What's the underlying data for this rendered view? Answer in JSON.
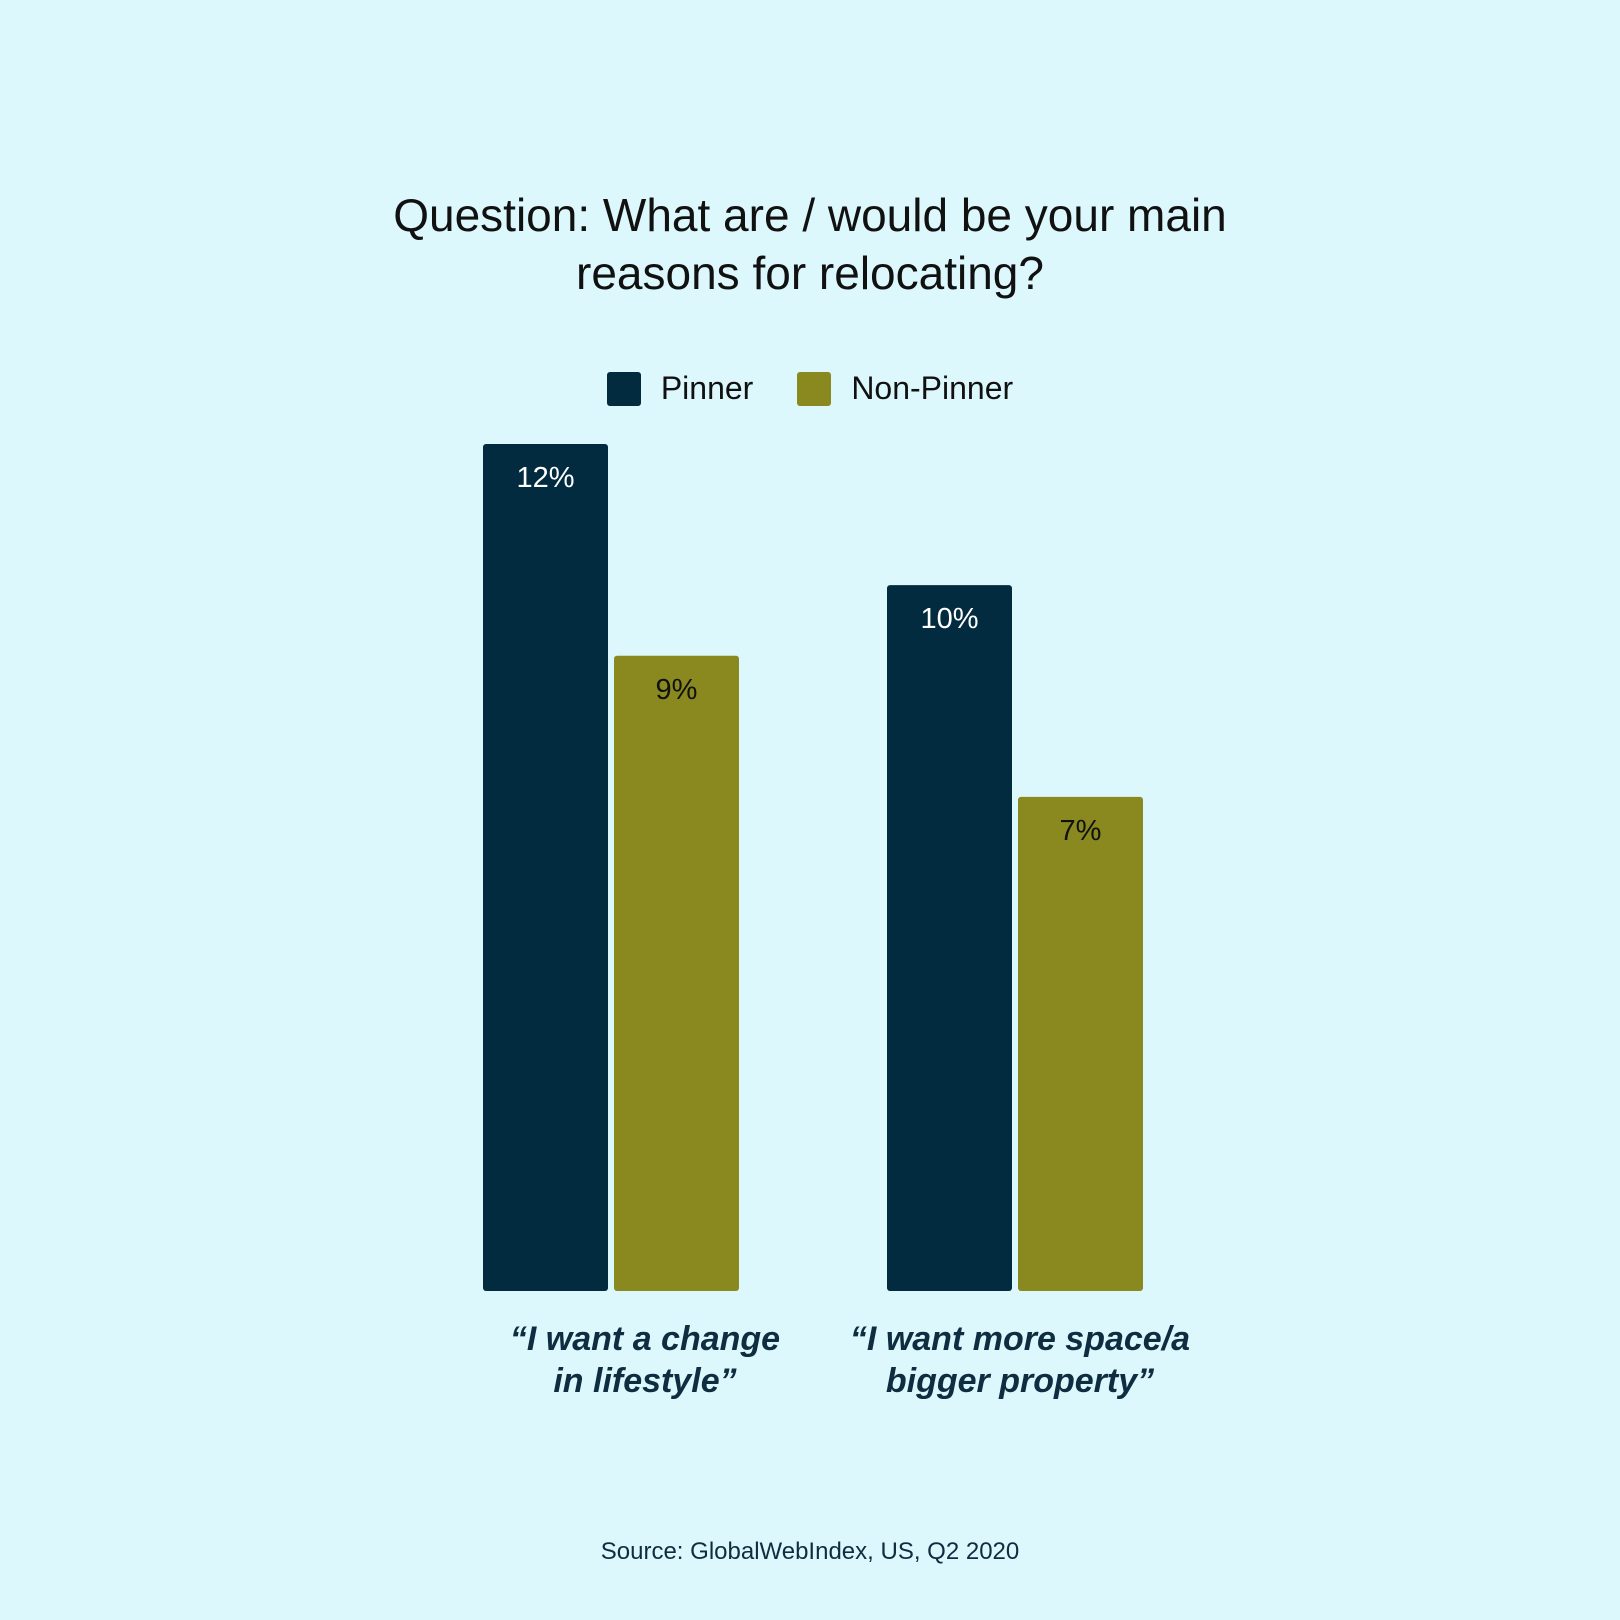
{
  "title": {
    "line1": "Question: What are / would be your main",
    "line2": "reasons for relocating?"
  },
  "legend": [
    {
      "label": "Pinner",
      "color": "#032b3f"
    },
    {
      "label": "Non-Pinner",
      "color": "#898920"
    }
  ],
  "chart_data": {
    "type": "bar",
    "title": "Question: What are / would be your main reasons for relocating?",
    "categories": [
      "“I want a change in lifestyle”",
      "“I want more space/a bigger property”"
    ],
    "category_lines": [
      [
        "“I want a change",
        "in lifestyle”"
      ],
      [
        "“I want more space/a",
        "bigger property”"
      ]
    ],
    "series": [
      {
        "name": "Pinner",
        "values": [
          12,
          10
        ],
        "labels": [
          "12%",
          "10%"
        ],
        "color": "#032b3f",
        "label_color": "#ffffff"
      },
      {
        "name": "Non-Pinner",
        "values": [
          9,
          7
        ],
        "labels": [
          "9%",
          "7%"
        ],
        "color": "#898920",
        "label_color": "#111111"
      }
    ],
    "xlabel": "",
    "ylabel": "",
    "ylim": [
      0,
      12
    ],
    "grid": false,
    "legend_position": "top-center"
  },
  "source": "Source: GlobalWebIndex, US, Q2 2020"
}
